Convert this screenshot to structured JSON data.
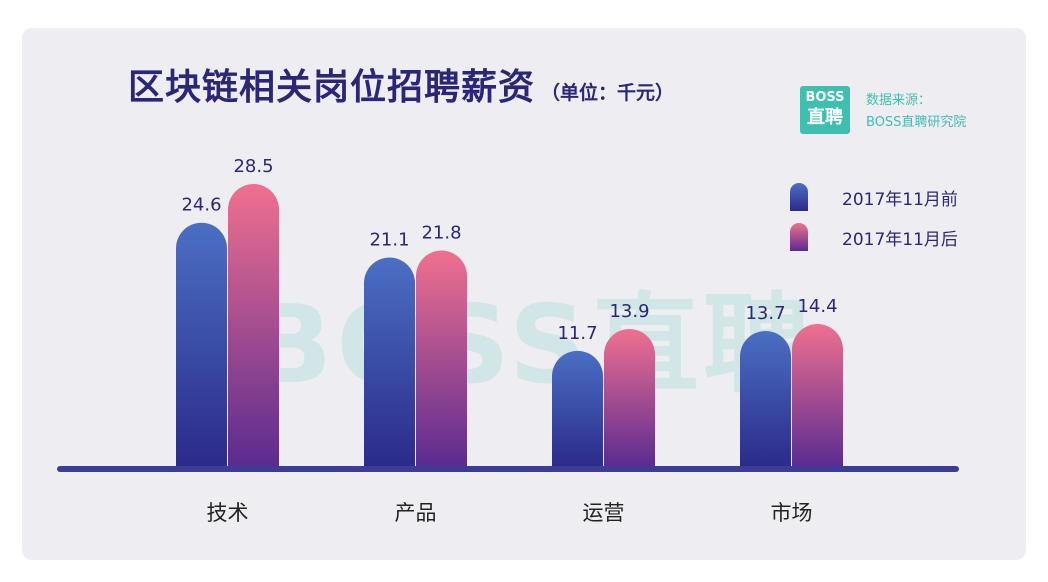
{
  "title": {
    "main": "区块链相关岗位招聘薪资",
    "unit": "（单位：千元）"
  },
  "logo": {
    "line1": "BOSS",
    "line2": "直聘"
  },
  "source": {
    "line1": "数据来源：",
    "line2": "BOSS直聘研究院"
  },
  "watermark": "BOSS直聘",
  "colors": {
    "before_top": "#4a6fc4",
    "before_bottom": "#2b2a8a",
    "after_top": "#f0708f",
    "after_bottom": "#5a2b90",
    "axis": "#3c3c96",
    "label": "#2b2778"
  },
  "chart_data": {
    "type": "bar",
    "categories": [
      "技术",
      "产品",
      "运营",
      "市场"
    ],
    "series": [
      {
        "name": "2017年11月前",
        "values": [
          24.6,
          21.1,
          11.7,
          13.7
        ]
      },
      {
        "name": "2017年11月后",
        "values": [
          28.5,
          21.8,
          13.9,
          14.4
        ]
      }
    ],
    "value_labels": [
      [
        "24.6",
        "21.1",
        "11.7",
        "13.7"
      ],
      [
        "28.5",
        "21.8",
        "13.9",
        "14.4"
      ]
    ],
    "ylim": [
      0,
      30
    ],
    "grid": false,
    "legend_position": "right"
  }
}
